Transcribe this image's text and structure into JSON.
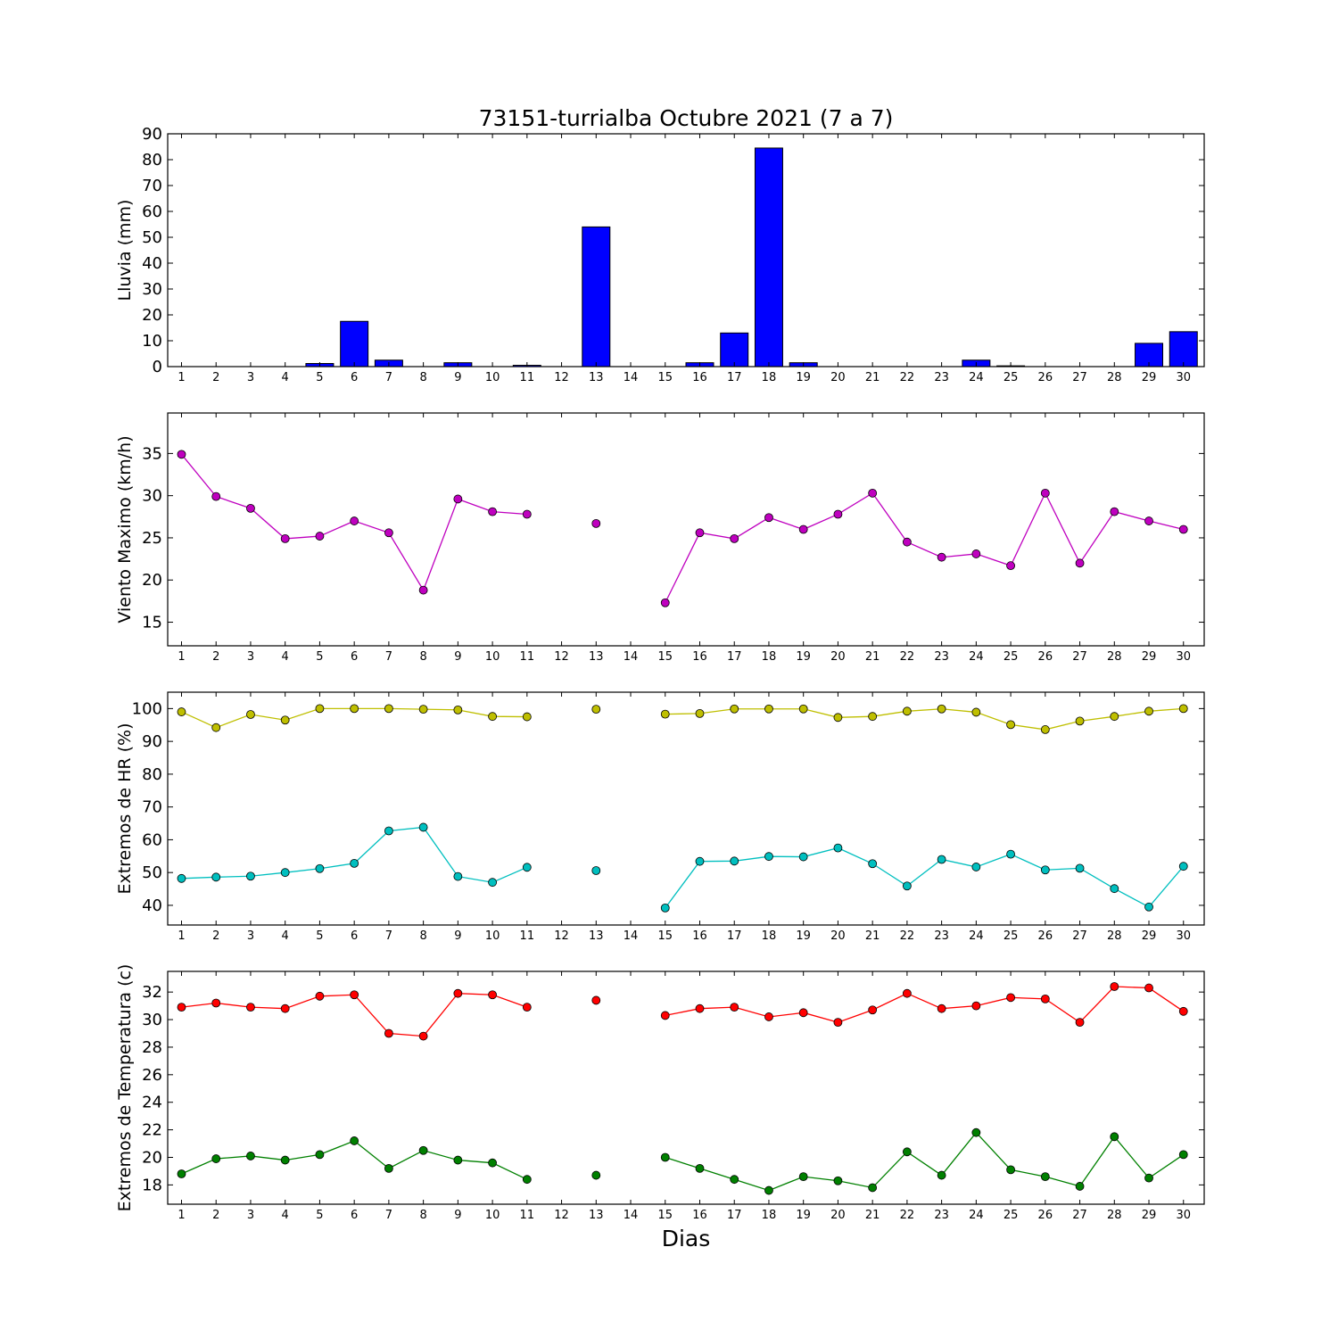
{
  "chart_data": {
    "type": "multi-panel",
    "title": "73151-turrialba Octubre 2021  (7 a 7)",
    "xlabel": "Dias",
    "days": [
      1,
      2,
      3,
      4,
      5,
      6,
      7,
      8,
      9,
      10,
      11,
      12,
      13,
      14,
      15,
      16,
      17,
      18,
      19,
      20,
      21,
      22,
      23,
      24,
      25,
      26,
      27,
      28,
      29,
      30
    ],
    "panels": [
      {
        "type": "bar",
        "ylabel": "Lluvia (mm)",
        "ylim": [
          0,
          90
        ],
        "yticks": [
          0,
          10,
          20,
          30,
          40,
          50,
          60,
          70,
          80,
          90
        ],
        "series": [
          {
            "color": "#0000ff",
            "values": [
              0,
              0,
              0,
              0,
              1.2,
              17.5,
              2.5,
              0,
              1.5,
              0,
              0.5,
              0,
              54,
              0,
              0,
              1.5,
              13,
              84.5,
              1.5,
              0,
              0,
              0,
              0,
              2.5,
              0.3,
              0,
              0,
              0,
              9,
              13.5
            ]
          }
        ]
      },
      {
        "type": "line",
        "ylabel": "Viento Maximo (km/h)",
        "ylim": [
          12.2,
          39.8
        ],
        "yticks": [
          15,
          20,
          25,
          30,
          35
        ],
        "series": [
          {
            "color": "#bf00bf",
            "values": [
              34.9,
              29.9,
              28.5,
              24.9,
              25.2,
              27.0,
              25.6,
              18.8,
              29.6,
              28.1,
              27.8,
              null,
              26.7,
              null,
              17.3,
              25.6,
              24.9,
              27.4,
              26.0,
              27.8,
              30.3,
              24.5,
              22.7,
              23.1,
              21.7,
              30.3,
              22.0,
              28.1,
              27.0,
              26.0
            ]
          }
        ]
      },
      {
        "type": "line",
        "ylabel": "Extremos de HR (%)",
        "ylim": [
          34,
          105
        ],
        "yticks": [
          40,
          50,
          60,
          70,
          80,
          90,
          100
        ],
        "series": [
          {
            "color": "#bfbf00",
            "values": [
              99,
              94.2,
              98.2,
              96.5,
              100,
              100,
              100,
              99.8,
              99.6,
              97.6,
              97.5,
              null,
              99.8,
              null,
              98.3,
              98.5,
              99.9,
              99.9,
              99.9,
              97.3,
              97.6,
              99.2,
              99.9,
              98.9,
              95.1,
              93.6,
              96.2,
              97.6,
              99.2,
              100
            ]
          },
          {
            "color": "#00bfbf",
            "values": [
              48.2,
              48.6,
              48.9,
              50,
              51.2,
              52.8,
              62.7,
              63.8,
              48.8,
              47,
              51.6,
              null,
              50.6,
              null,
              39.2,
              53.4,
              53.5,
              54.9,
              54.8,
              57.5,
              52.7,
              45.9,
              54,
              51.7,
              55.6,
              50.8,
              51.3,
              45.1,
              39.5,
              51.9
            ]
          }
        ]
      },
      {
        "type": "line",
        "ylabel": "Extremos de Temperatura (c)",
        "ylim": [
          16.6,
          33.5
        ],
        "yticks": [
          18,
          20,
          22,
          24,
          26,
          28,
          30,
          32
        ],
        "series": [
          {
            "color": "#ff0000",
            "values": [
              30.9,
              31.2,
              30.9,
              30.8,
              31.7,
              31.8,
              29.0,
              28.8,
              31.9,
              31.8,
              30.9,
              null,
              31.4,
              null,
              30.3,
              30.8,
              30.9,
              30.2,
              30.5,
              29.8,
              30.7,
              31.9,
              30.8,
              31.0,
              31.6,
              31.5,
              29.8,
              32.4,
              32.3,
              30.6
            ]
          },
          {
            "color": "#008000",
            "values": [
              18.8,
              19.9,
              20.1,
              19.8,
              20.2,
              21.2,
              19.2,
              20.5,
              19.8,
              19.6,
              18.4,
              null,
              18.7,
              null,
              20.0,
              19.2,
              18.4,
              17.6,
              18.6,
              18.3,
              17.8,
              20.4,
              18.7,
              21.8,
              19.1,
              18.6,
              17.9,
              21.5,
              18.5,
              20.2
            ]
          }
        ]
      }
    ]
  }
}
